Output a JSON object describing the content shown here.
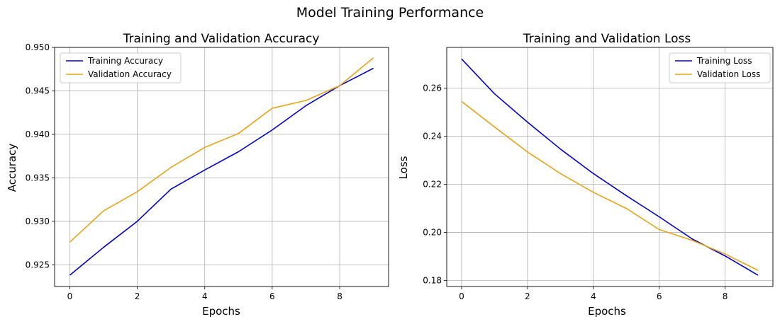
{
  "figure": {
    "title": "Model Training Performance"
  },
  "chart_data": [
    {
      "type": "line",
      "title": "Training and Validation Accuracy",
      "xlabel": "Epochs",
      "ylabel": "Accuracy",
      "x": [
        0,
        1,
        2,
        3,
        4,
        5,
        6,
        7,
        8,
        9
      ],
      "xlim": [
        -0.45,
        9.45
      ],
      "ylim": [
        0.9225,
        0.95
      ],
      "xticks": [
        0,
        2,
        4,
        6,
        8
      ],
      "yticks": [
        0.925,
        0.93,
        0.935,
        0.94,
        0.945,
        0.95
      ],
      "ytick_labels": [
        "0.925",
        "0.930",
        "0.935",
        "0.940",
        "0.945",
        "0.950"
      ],
      "grid": true,
      "legend_position": "upper left",
      "series": [
        {
          "name": "Training Accuracy",
          "color": "#0000cc",
          "values": [
            0.9238,
            0.927,
            0.93,
            0.9337,
            0.9359,
            0.938,
            0.9405,
            0.9433,
            0.9456,
            0.9476
          ]
        },
        {
          "name": "Validation Accuracy",
          "color": "#e8a317",
          "values": [
            0.9276,
            0.9312,
            0.9334,
            0.9362,
            0.9385,
            0.9401,
            0.943,
            0.9439,
            0.9456,
            0.9488
          ]
        }
      ]
    },
    {
      "type": "line",
      "title": "Training and Validation Loss",
      "xlabel": "Epochs",
      "ylabel": "Loss",
      "x": [
        0,
        1,
        2,
        3,
        4,
        5,
        6,
        7,
        8,
        9
      ],
      "xlim": [
        -0.45,
        9.45
      ],
      "ylim": [
        0.1775,
        0.277
      ],
      "xticks": [
        0,
        2,
        4,
        6,
        8
      ],
      "yticks": [
        0.18,
        0.2,
        0.22,
        0.24,
        0.26
      ],
      "ytick_labels": [
        "0.18",
        "0.20",
        "0.22",
        "0.24",
        "0.26"
      ],
      "grid": true,
      "legend_position": "upper right",
      "series": [
        {
          "name": "Training Loss",
          "color": "#0000cc",
          "values": [
            0.2722,
            0.2577,
            0.2459,
            0.2347,
            0.2245,
            0.2153,
            0.2065,
            0.1973,
            0.1902,
            0.1822
          ]
        },
        {
          "name": "Validation Loss",
          "color": "#e8a317",
          "values": [
            0.2545,
            0.2439,
            0.2335,
            0.2245,
            0.2167,
            0.21,
            0.2012,
            0.1967,
            0.191,
            0.1842
          ]
        }
      ]
    }
  ]
}
